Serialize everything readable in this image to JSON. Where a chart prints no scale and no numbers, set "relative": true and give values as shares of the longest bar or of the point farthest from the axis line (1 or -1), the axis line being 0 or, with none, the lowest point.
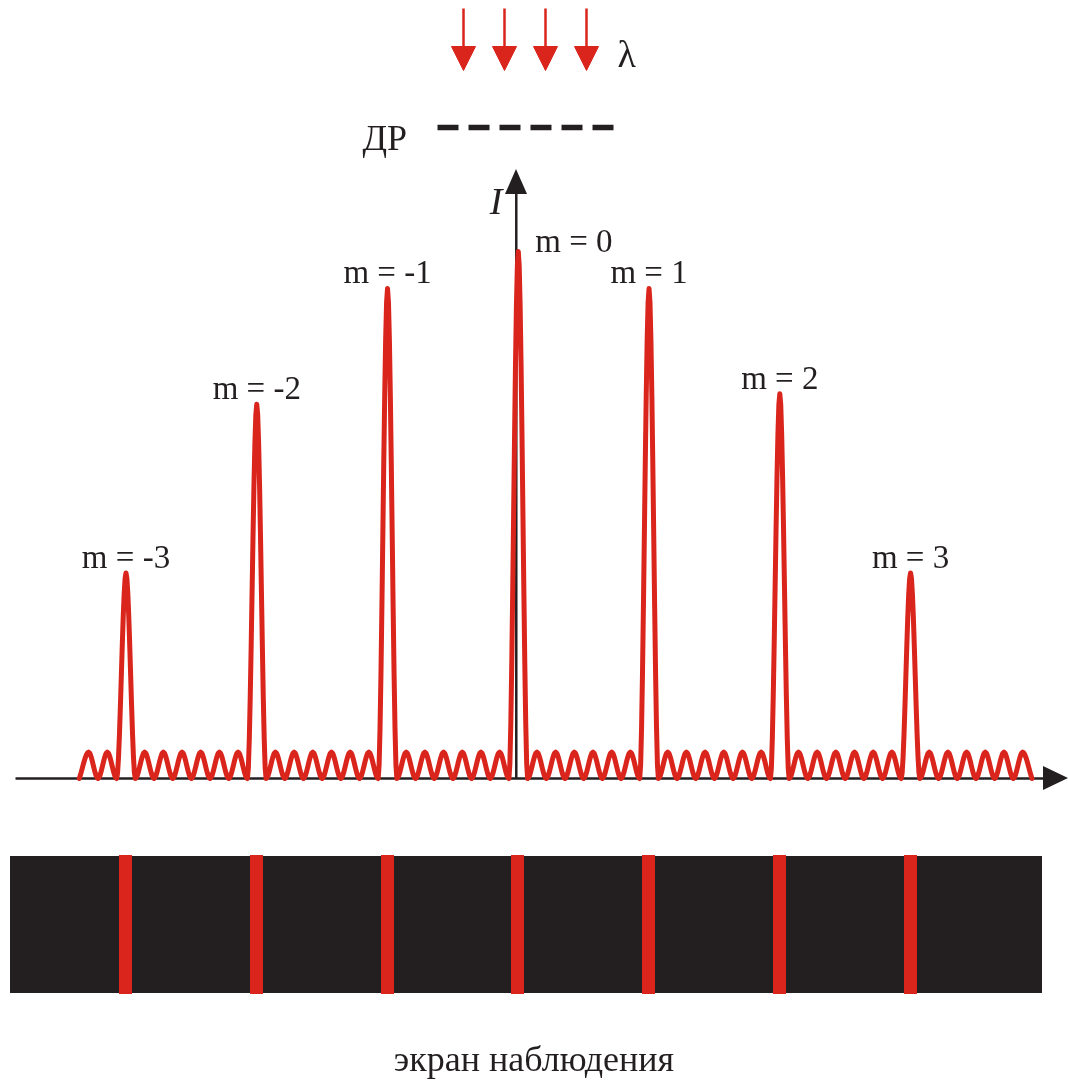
{
  "chart_data": {
    "type": "line",
    "relative": true,
    "color": "#da251d",
    "ylabel": "I",
    "categories": [
      null,
      null,
      null,
      null,
      null,
      null,
      null,
      null,
      null,
      null,
      null,
      null,
      null,
      null,
      null,
      null,
      null,
      null,
      null,
      null,
      null,
      null,
      null,
      null,
      null,
      null,
      null,
      null,
      null,
      null,
      null,
      null,
      null,
      null,
      null,
      null,
      null,
      null,
      null,
      null,
      null,
      null,
      null,
      null,
      null,
      null,
      null,
      null,
      null,
      null,
      null,
      null,
      null,
      null,
      null,
      null,
      null,
      null,
      null,
      null,
      null,
      null,
      null,
      null,
      null,
      null,
      null,
      null,
      null,
      null,
      null,
      null,
      null,
      null,
      null,
      null,
      null,
      null,
      null,
      null,
      null,
      null,
      null,
      null,
      null,
      null,
      null,
      null,
      null,
      null,
      null,
      null,
      null,
      null,
      null,
      null,
      null,
      null,
      null,
      null,
      null,
      null,
      null
    ],
    "values": [
      0,
      0.05,
      0,
      0.05,
      0,
      0.39,
      0,
      0.05,
      0,
      0.05,
      0,
      0.05,
      0,
      0.05,
      0,
      0.05,
      0,
      0.05,
      0,
      0.71,
      0,
      0.05,
      0,
      0.05,
      0,
      0.05,
      0,
      0.05,
      0,
      0.05,
      0,
      0.05,
      0,
      0.93,
      0,
      0.05,
      0,
      0.05,
      0,
      0.05,
      0,
      0.05,
      0,
      0.05,
      0,
      0.05,
      0,
      1,
      0,
      0.05,
      0,
      0.05,
      0,
      0.05,
      0,
      0.05,
      0,
      0.05,
      0,
      0.05,
      0,
      0.93,
      0,
      0.05,
      0,
      0.05,
      0,
      0.05,
      0,
      0.05,
      0,
      0.05,
      0,
      0.05,
      0,
      0.73,
      0,
      0.05,
      0,
      0.05,
      0,
      0.05,
      0,
      0.05,
      0,
      0.05,
      0,
      0.05,
      0,
      0.39,
      0,
      0.05,
      0,
      0.05,
      0,
      0.05,
      0,
      0.05,
      0,
      0.05,
      0,
      0.05,
      0
    ],
    "annotations": [
      "λ",
      "ДР",
      {
        "text": "m = -3",
        "y": 0.39
      },
      {
        "text": "m = -2",
        "y": 0.71
      },
      {
        "text": "m = -1",
        "y": 0.93
      },
      "m = 0",
      {
        "text": "m = 1",
        "y": 0.93
      },
      {
        "text": "m = 2",
        "y": 0.73
      },
      {
        "text": "m = 3",
        "y": 0.39
      },
      "экран наблюдения"
    ]
  }
}
